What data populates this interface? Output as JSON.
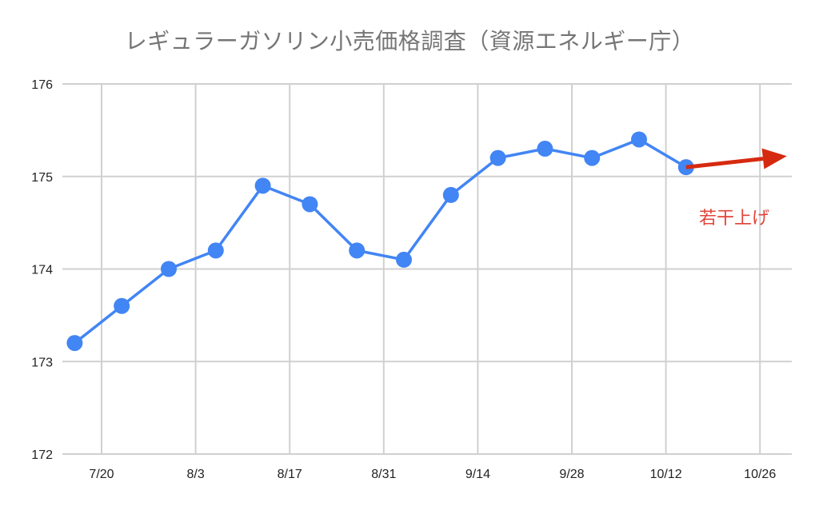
{
  "chart_data": {
    "type": "line",
    "title": "レギュラーガソリン小売価格調査（資源エネルギー庁）",
    "xlabel": "",
    "ylabel": "",
    "x_ticks": [
      "7/20",
      "8/3",
      "8/17",
      "8/31",
      "9/14",
      "9/28",
      "10/12",
      "10/26"
    ],
    "y_ticks": [
      172,
      173,
      174,
      175,
      176
    ],
    "ylim": [
      172,
      176
    ],
    "grid": true,
    "legend": "none",
    "series": [
      {
        "color": "#4285f4",
        "x": [
          "7/16",
          "7/23",
          "7/30",
          "8/6",
          "8/13",
          "8/20",
          "8/27",
          "9/3",
          "9/10",
          "9/17",
          "9/24",
          "10/1",
          "10/8",
          "10/15"
        ],
        "values": [
          173.2,
          173.6,
          174.0,
          174.2,
          174.9,
          174.7,
          174.2,
          174.1,
          174.8,
          175.2,
          175.3,
          175.2,
          175.4,
          175.1
        ]
      }
    ],
    "annotation": {
      "text": "若干上げ",
      "color": "#e0443a",
      "arrow_color": "#d62a10",
      "arrow_from": {
        "x": "10/15",
        "y": 175.1
      },
      "arrow_to": {
        "x": "10/30",
        "y": 175.22
      }
    }
  }
}
